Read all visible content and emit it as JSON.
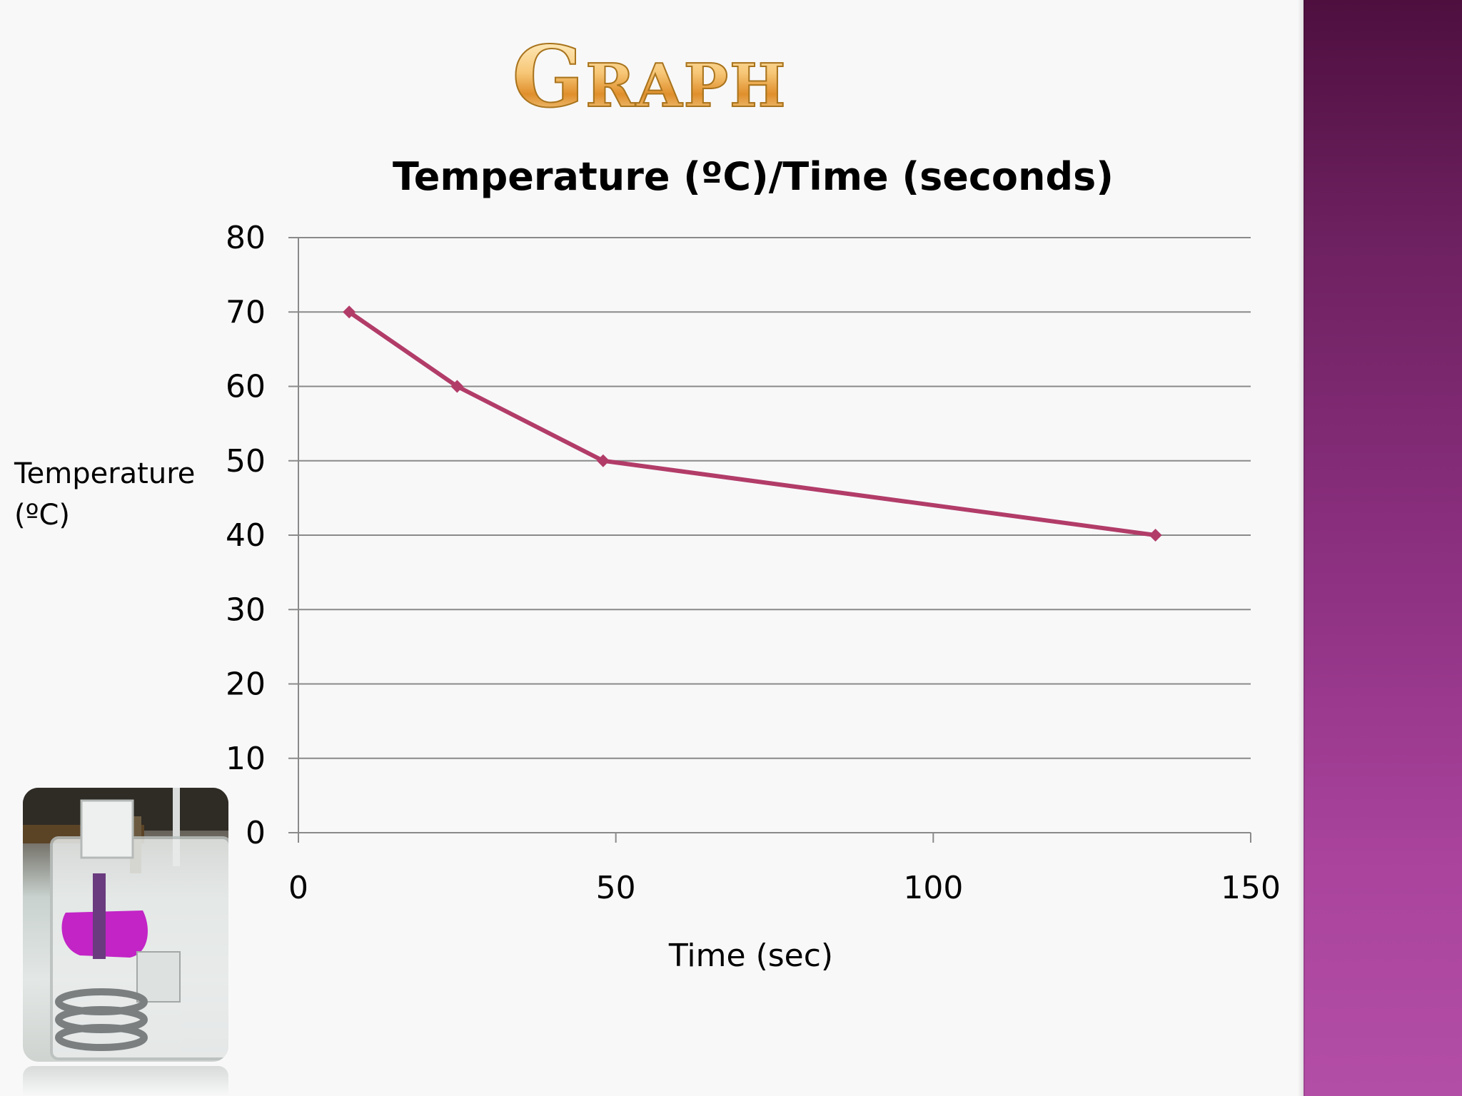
{
  "slide": {
    "heading": "Graph",
    "colors": {
      "background": "#f8f8f9",
      "side_panel_top": "#4e0f3f",
      "side_panel_bottom": "#b34ea6",
      "heading_fill": "#f2b15a"
    }
  },
  "photo": {
    "icon": "beaker-photo-icon"
  },
  "chart_data": {
    "type": "line",
    "title": "Temperature (ºC)/Time (seconds)",
    "xlabel": "Time (sec)",
    "ylabel": [
      "Temperature",
      "(ºC)"
    ],
    "xlim": [
      0,
      150
    ],
    "ylim": [
      0,
      80
    ],
    "x_ticks": [
      0,
      50,
      100,
      150
    ],
    "y_ticks": [
      0,
      10,
      20,
      30,
      40,
      50,
      60,
      70,
      80
    ],
    "grid": true,
    "legend": "none",
    "series": [
      {
        "color": "#b23c68",
        "marker": "diamond",
        "points": [
          {
            "x": 8,
            "y": 70
          },
          {
            "x": 25,
            "y": 60
          },
          {
            "x": 48,
            "y": 50
          },
          {
            "x": 135,
            "y": 40
          }
        ]
      }
    ]
  }
}
